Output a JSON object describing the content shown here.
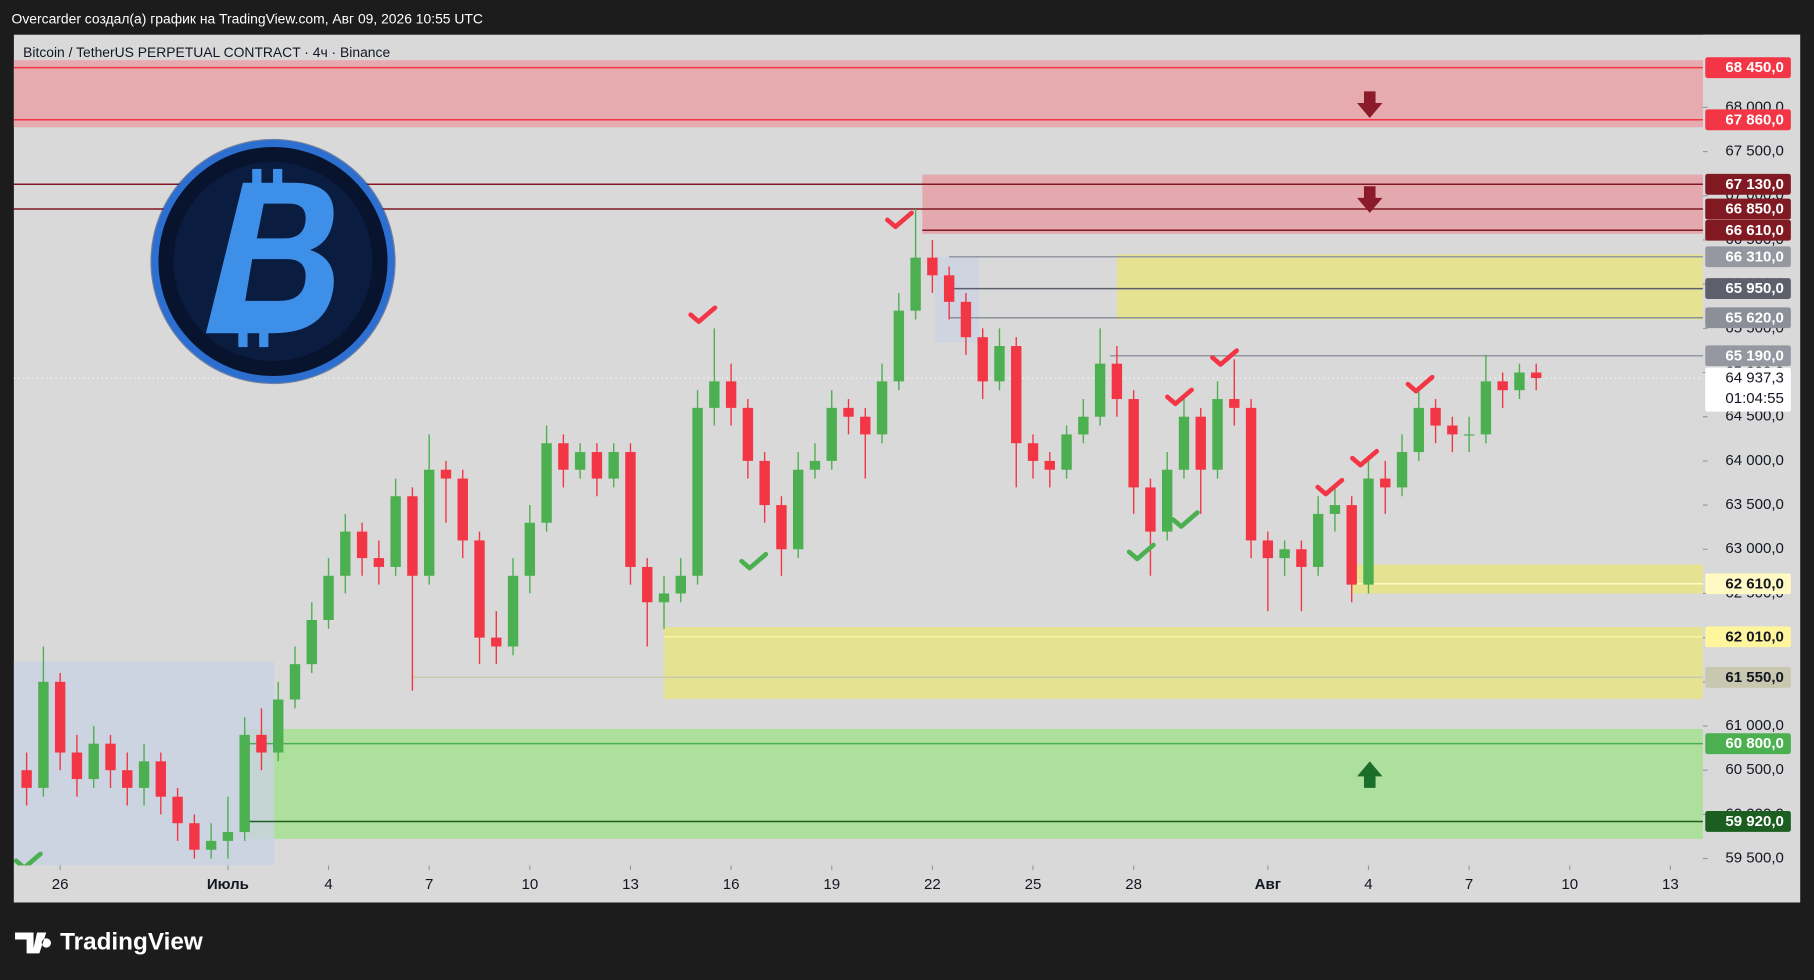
{
  "header": {
    "title": "Overcarder создал(а) график на TradingView.com, Авг 09, 2026 10:55 UTC"
  },
  "footer": {
    "brand": "TradingView"
  },
  "chart_data": {
    "type": "candlestick",
    "title": "Bitcoin / TetherUS PERPETUAL CONTRACT · 4ч · Binance",
    "x": [
      -1,
      -0.5,
      0,
      0.5,
      1,
      1.5,
      2,
      2.5,
      3,
      3.5,
      4,
      4.5,
      5,
      5.5,
      6,
      6.5,
      7,
      7.5,
      8,
      8.5,
      9,
      9.5,
      10,
      10.5,
      11,
      11.5,
      12,
      12.5,
      13,
      13.5,
      14,
      14.5,
      15,
      15.5,
      16,
      16.5,
      17,
      17.5,
      18,
      18.5,
      19,
      19.5,
      20,
      20.5,
      21,
      21.5,
      22,
      22.5,
      23,
      23.5,
      24,
      24.5,
      25,
      25.5,
      26,
      26.5,
      27,
      27.5,
      28,
      28.5,
      29,
      29.5,
      30,
      30.5,
      31,
      31.5,
      32,
      32.5,
      33,
      33.5,
      34,
      34.5,
      35,
      35.5,
      36,
      36.5,
      37,
      37.5,
      38,
      38.5,
      39,
      39.5,
      40,
      40.5,
      41,
      41.5,
      42,
      42.5,
      43,
      43.5,
      44
    ],
    "open": [
      60500,
      60300,
      61500,
      60700,
      60400,
      60800,
      60500,
      60300,
      60600,
      60200,
      59900,
      59600,
      59700,
      59800,
      60900,
      60700,
      61300,
      61700,
      62200,
      62700,
      63200,
      62900,
      62800,
      63600,
      62700,
      63900,
      63800,
      63100,
      62000,
      61900,
      62700,
      63300,
      64200,
      63900,
      64100,
      63800,
      64100,
      62800,
      62400,
      62500,
      62700,
      64600,
      64900,
      64600,
      64000,
      63500,
      63000,
      63900,
      64000,
      64600,
      64500,
      64300,
      64900,
      65700,
      66300,
      66100,
      65800,
      65400,
      64900,
      65300,
      64200,
      64000,
      63900,
      64300,
      64500,
      65100,
      64700,
      63700,
      63200,
      63900,
      64500,
      63900,
      64700,
      64600,
      63100,
      62900,
      63000,
      62800,
      63400,
      63500,
      62600,
      63800,
      63700,
      64100,
      64600,
      64400,
      64300,
      64300,
      64900,
      64800,
      65000
    ],
    "high": [
      60700,
      61900,
      61600,
      60900,
      61000,
      60900,
      60700,
      60800,
      60700,
      60300,
      60000,
      59900,
      60200,
      61100,
      61200,
      61500,
      61900,
      62400,
      62900,
      63400,
      63300,
      63100,
      63800,
      63700,
      64300,
      64000,
      63900,
      63200,
      62300,
      62900,
      63500,
      64400,
      64300,
      64200,
      64200,
      64200,
      64200,
      62900,
      62700,
      62900,
      64800,
      65500,
      65100,
      64700,
      64100,
      63600,
      64100,
      64200,
      64800,
      64700,
      64600,
      65100,
      65900,
      66850,
      66500,
      66200,
      65900,
      65500,
      65500,
      65400,
      64300,
      64100,
      64400,
      64700,
      65500,
      65300,
      64800,
      63800,
      64100,
      64700,
      64600,
      64900,
      65150,
      64700,
      63200,
      63100,
      63100,
      63600,
      63700,
      63600,
      64000,
      64000,
      64300,
      64800,
      64700,
      64500,
      64500,
      65200,
      65000,
      65100,
      65100
    ],
    "low": [
      60100,
      60200,
      60500,
      60200,
      60300,
      60300,
      60100,
      60100,
      60000,
      59700,
      59500,
      59500,
      59500,
      59700,
      60500,
      60600,
      61200,
      61600,
      62100,
      62500,
      62700,
      62600,
      62700,
      61400,
      62600,
      63300,
      62900,
      61700,
      61700,
      61800,
      62500,
      63200,
      63700,
      63800,
      63600,
      63700,
      62600,
      61900,
      62100,
      62400,
      62600,
      64400,
      64400,
      63800,
      63300,
      62700,
      62900,
      63800,
      63900,
      64300,
      63800,
      64200,
      64800,
      65600,
      65900,
      65600,
      65200,
      64700,
      64800,
      63700,
      63800,
      63700,
      63800,
      64200,
      64400,
      64500,
      63400,
      62700,
      63100,
      63800,
      63400,
      63800,
      64400,
      62900,
      62300,
      62700,
      62300,
      62700,
      63200,
      62400,
      62500,
      63400,
      63600,
      64000,
      64200,
      64100,
      64100,
      64200,
      64600,
      64700,
      64800
    ],
    "close": [
      60300,
      61500,
      60700,
      60400,
      60800,
      60500,
      60300,
      60600,
      60200,
      59900,
      59600,
      59700,
      59800,
      60900,
      60700,
      61300,
      61700,
      62200,
      62700,
      63200,
      62900,
      62800,
      63600,
      62700,
      63900,
      63800,
      63100,
      62000,
      61900,
      62700,
      63300,
      64200,
      63900,
      64100,
      63800,
      64100,
      62800,
      62400,
      62500,
      62700,
      64600,
      64900,
      64600,
      64000,
      63500,
      63000,
      63900,
      64000,
      64600,
      64500,
      64300,
      64900,
      65700,
      66300,
      66100,
      65800,
      65400,
      64900,
      65300,
      64200,
      64000,
      63900,
      64300,
      64500,
      65100,
      64700,
      63700,
      63200,
      63900,
      64500,
      63900,
      64700,
      64600,
      63100,
      62900,
      63000,
      62800,
      63400,
      63500,
      62600,
      63800,
      63700,
      64100,
      64600,
      64400,
      64300,
      64300,
      64900,
      64800,
      65000,
      64937.3
    ],
    "up_color": "#4caf50",
    "down_color": "#f23645",
    "grid": false,
    "xlim": [
      -1.38,
      48.97
    ],
    "xticks": [
      {
        "value": 0,
        "label": "26"
      },
      {
        "value": 5,
        "label": "Июль"
      },
      {
        "value": 8,
        "label": "4"
      },
      {
        "value": 11,
        "label": "7"
      },
      {
        "value": 14,
        "label": "10"
      },
      {
        "value": 17,
        "label": "13"
      },
      {
        "value": 20,
        "label": "16"
      },
      {
        "value": 23,
        "label": "19"
      },
      {
        "value": 26,
        "label": "22"
      },
      {
        "value": 29,
        "label": "25"
      },
      {
        "value": 32,
        "label": "28"
      },
      {
        "value": 36,
        "label": "Авг"
      },
      {
        "value": 39,
        "label": "4"
      },
      {
        "value": 42,
        "label": "7"
      },
      {
        "value": 45,
        "label": "10"
      },
      {
        "value": 48,
        "label": "13"
      }
    ],
    "ylim": [
      59422,
      68718
    ],
    "yticks": [
      {
        "value": 59500,
        "label": "59 500,0"
      },
      {
        "value": 60000,
        "label": "60 000,0"
      },
      {
        "value": 60500,
        "label": "60 500,0"
      },
      {
        "value": 61000,
        "label": "61 000,0"
      },
      {
        "value": 61500,
        "label": "61 500,0"
      },
      {
        "value": 62000,
        "label": "62 000,0"
      },
      {
        "value": 62500,
        "label": "62 500,0"
      },
      {
        "value": 63000,
        "label": "63 000,0"
      },
      {
        "value": 63500,
        "label": "63 500,0"
      },
      {
        "value": 64000,
        "label": "64 000,0"
      },
      {
        "value": 64500,
        "label": "64 500,0"
      },
      {
        "value": 65000,
        "label": "65 000,0"
      },
      {
        "value": 65500,
        "label": "65 500,0"
      },
      {
        "value": 66000,
        "label": "66 000,0"
      },
      {
        "value": 66500,
        "label": "66 500,0"
      },
      {
        "value": 67000,
        "label": "67 000,0"
      },
      {
        "value": 67500,
        "label": "67 500,0"
      },
      {
        "value": 68000,
        "label": "68 000,0"
      }
    ],
    "last_price": {
      "value": 64937.3,
      "label": "64 937,3",
      "countdown": "01:04:55"
    },
    "zones": [
      {
        "high": 68534,
        "low": 67775,
        "from": -1.38,
        "color": "#e8a4a8"
      },
      {
        "high": 67240,
        "low": 66570,
        "from": 25.7,
        "color": "#e3a3a8"
      },
      {
        "high": 66335,
        "low": 65600,
        "from": 31.5,
        "color": "#e6e38a"
      },
      {
        "high": 62826,
        "low": 62500,
        "from": 38.5,
        "color": "#e6e38a"
      },
      {
        "high": 62120,
        "low": 61307,
        "from": 18,
        "color": "#e6e38a"
      },
      {
        "high": 60967,
        "low": 59723,
        "from": 5.5,
        "color": "#a8e096"
      }
    ],
    "levels": [
      {
        "value": 68450,
        "label": "68 450,0",
        "color": "#f23645",
        "text_color": "#ffffff",
        "from": -1.38
      },
      {
        "value": 67860,
        "label": "67 860,0",
        "color": "#f23645",
        "text_color": "#ffffff",
        "from": -1.38
      },
      {
        "value": 67130,
        "label": "67 130,0",
        "color": "#801922",
        "text_color": "#ffffff",
        "from": -1.38
      },
      {
        "value": 66850,
        "label": "66 850,0",
        "color": "#801922",
        "text_color": "#ffffff",
        "from": -1.38
      },
      {
        "value": 66610,
        "label": "66 610,0",
        "color": "#801922",
        "text_color": "#ffffff",
        "from": 25.7
      },
      {
        "value": 66310,
        "label": "66 310,0",
        "color": "#9598a1",
        "text_color": "#ffffff",
        "from": 26.5
      },
      {
        "value": 65950,
        "label": "65 950,0",
        "color": "#5d606b",
        "text_color": "#ffffff",
        "from": 26.5
      },
      {
        "value": 65620,
        "label": "65 620,0",
        "color": "#8c8f98",
        "text_color": "#ffffff",
        "from": 26.5
      },
      {
        "value": 65190,
        "label": "65 190,0",
        "color": "#9598a1",
        "text_color": "#ffffff",
        "from": 31.3
      },
      {
        "value": 62610,
        "label": "62 610,0",
        "color": "#fff9c4",
        "text_color": "#131722",
        "from": 38.5
      },
      {
        "value": 62010,
        "label": "62 010,0",
        "color": "#fff59d",
        "text_color": "#131722",
        "from": 18
      },
      {
        "value": 61550,
        "label": "61 550,0",
        "color": "#c8c8b0",
        "text_color": "#131722",
        "from": 10.5
      },
      {
        "value": 60800,
        "label": "60 800,0",
        "color": "#4caf50",
        "text_color": "#ffffff",
        "from": 5.5
      },
      {
        "value": 59920,
        "label": "59 920,0",
        "color": "#1b5e20",
        "text_color": "#ffffff",
        "from": 5.5
      }
    ]
  }
}
